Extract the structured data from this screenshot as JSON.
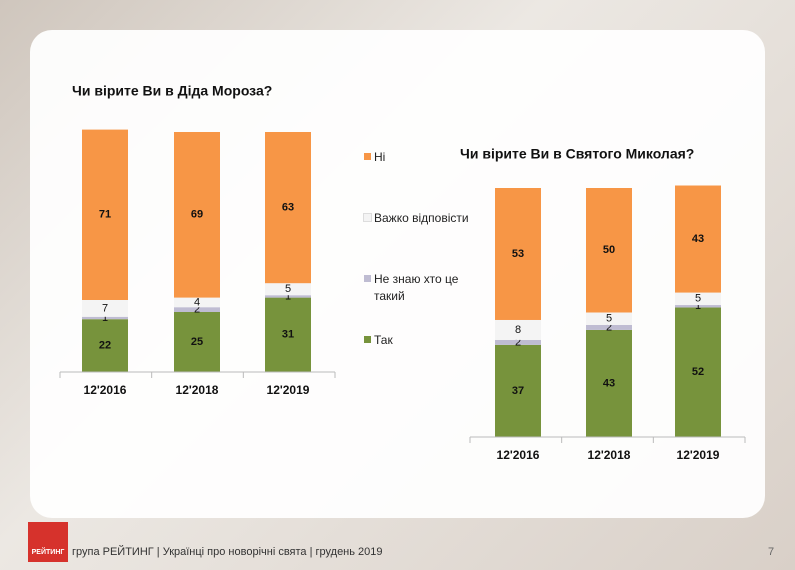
{
  "chart_data": [
    {
      "type": "stacked-bar",
      "title": "Чи вірите Ви в Діда Мороза?",
      "categories": [
        "12'2016",
        "12'2018",
        "12'2019"
      ],
      "series": [
        {
          "name": "Так",
          "color": "#77933c",
          "values": [
            22,
            25,
            31
          ]
        },
        {
          "name": "Не знаю хто це такий",
          "color": "#bfbcd2",
          "values": [
            1,
            2,
            1
          ]
        },
        {
          "name": "Важко відповісти",
          "color": "#f4f4f4",
          "values": [
            7,
            4,
            5
          ]
        },
        {
          "name": "Ні",
          "color": "#f79646",
          "values": [
            71,
            69,
            63
          ]
        }
      ],
      "ylim": [
        0,
        100
      ]
    },
    {
      "type": "stacked-bar",
      "title": "Чи вірите Ви в Святого Миколая?",
      "categories": [
        "12'2016",
        "12'2018",
        "12'2019"
      ],
      "series": [
        {
          "name": "Так",
          "color": "#77933c",
          "values": [
            37,
            43,
            52
          ]
        },
        {
          "name": "Не знаю хто це такий",
          "color": "#bfbcd2",
          "values": [
            2,
            2,
            1
          ]
        },
        {
          "name": "Важко відповісти",
          "color": "#f4f4f4",
          "values": [
            8,
            5,
            5
          ]
        },
        {
          "name": "Ні",
          "color": "#f79646",
          "values": [
            53,
            50,
            43
          ]
        }
      ],
      "ylim": [
        0,
        100
      ]
    }
  ],
  "footer": {
    "logo": "РЕЙТИНГ",
    "text": "група РЕЙТИНГ  |  Українці про новорічні свята |  грудень  2019",
    "page": "7"
  }
}
